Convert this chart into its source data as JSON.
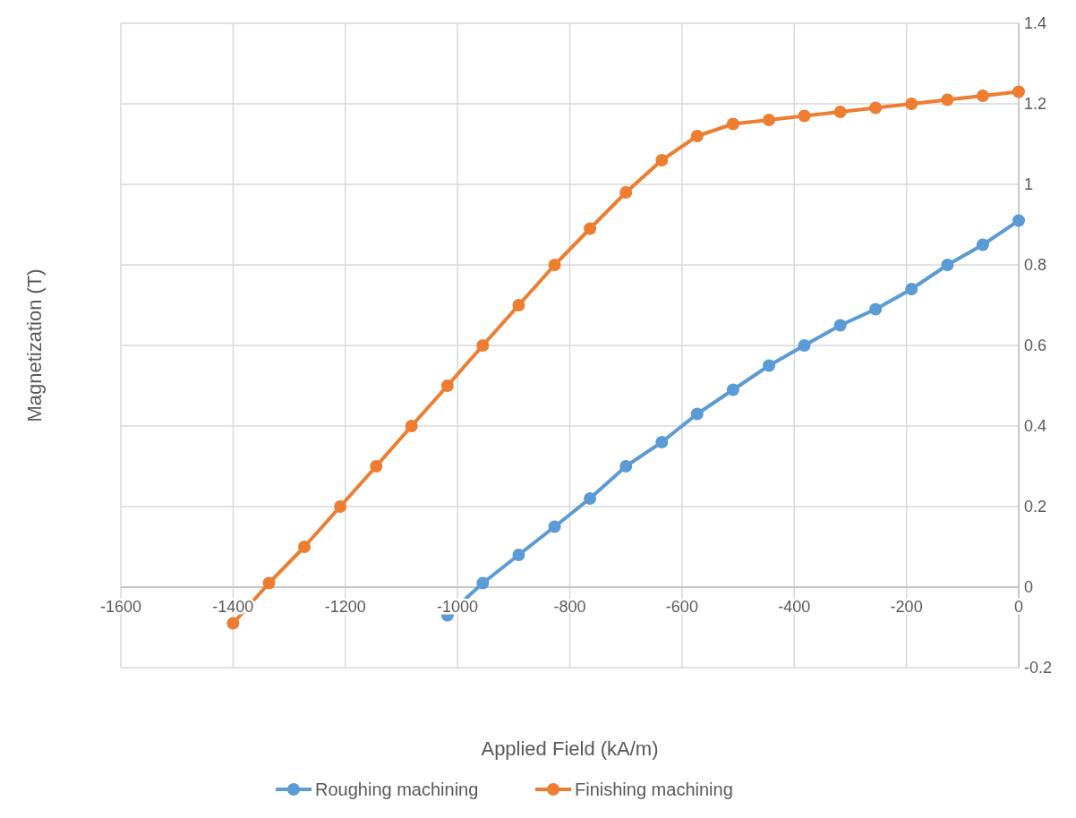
{
  "chart_data": {
    "type": "line",
    "xlabel": "Applied Field (kA/m)",
    "ylabel": "Magnetization (T)",
    "xlim": [
      -1600,
      0
    ],
    "xticks": [
      -1600,
      -1400,
      -1200,
      -1000,
      -800,
      -600,
      -400,
      -200,
      0
    ],
    "ylim": [
      -0.2,
      1.4
    ],
    "yticks": [
      -0.2,
      0,
      0.2,
      0.4,
      0.6,
      0.8,
      1,
      1.2,
      1.4
    ],
    "grid": true,
    "legend": "bottom",
    "marker": "circle",
    "line_style": "solid",
    "series": [
      {
        "name": "Roughing machining",
        "color": "#5b9bd5",
        "x": [
          -1018,
          -955,
          -891,
          -827,
          -764,
          -700,
          -636,
          -573,
          -509,
          -445,
          -382,
          -318,
          -255,
          -191,
          -127,
          -64,
          0
        ],
        "values": [
          -0.07,
          0.01,
          0.08,
          0.15,
          0.22,
          0.3,
          0.36,
          0.43,
          0.49,
          0.55,
          0.6,
          0.65,
          0.69,
          0.74,
          0.8,
          0.85,
          0.91
        ]
      },
      {
        "name": "Finishing machining",
        "color": "#ed7d31",
        "x": [
          -1400,
          -1336,
          -1273,
          -1209,
          -1145,
          -1082,
          -1018,
          -955,
          -891,
          -827,
          -764,
          -700,
          -636,
          -573,
          -509,
          -445,
          -382,
          -318,
          -255,
          -191,
          -127,
          -64,
          0
        ],
        "values": [
          -0.09,
          0.01,
          0.1,
          0.2,
          0.3,
          0.4,
          0.5,
          0.6,
          0.7,
          0.8,
          0.89,
          0.98,
          1.06,
          1.12,
          1.15,
          1.16,
          1.17,
          1.18,
          1.19,
          1.2,
          1.21,
          1.22,
          1.23
        ]
      }
    ]
  }
}
